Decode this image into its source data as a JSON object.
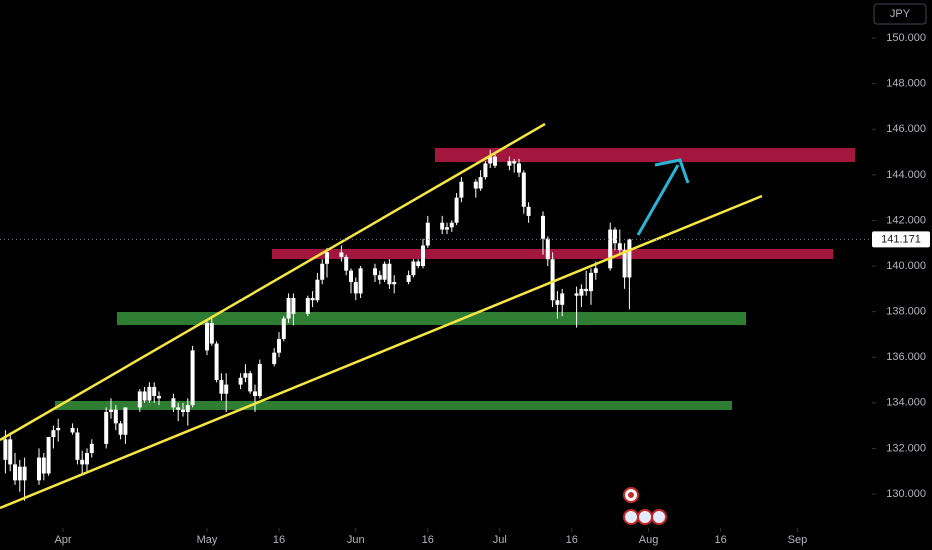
{
  "chart_data": {
    "type": "candlestick",
    "currency": "JPY",
    "x": [
      -12,
      -11,
      -10,
      -9,
      -8,
      -5,
      -4,
      -3,
      -2,
      -1,
      2,
      3,
      4,
      5,
      6,
      9,
      10,
      11,
      12,
      13,
      16,
      17,
      18,
      19,
      20,
      23,
      24,
      25,
      26,
      27,
      30,
      31,
      32,
      33,
      34,
      37,
      38,
      39,
      40,
      41,
      44,
      45,
      46,
      47,
      48,
      51,
      52,
      53,
      54,
      55,
      58,
      59,
      60,
      61,
      62,
      65,
      66,
      67,
      68,
      69,
      72,
      73,
      74,
      75,
      76,
      79,
      80,
      81,
      82,
      83,
      86,
      87,
      88,
      89,
      90,
      93,
      94,
      95,
      96,
      97,
      100,
      101,
      102,
      103,
      104,
      107,
      108,
      109,
      110,
      111,
      114,
      115,
      116,
      117,
      118
    ],
    "ohlc": [
      [
        131.5,
        132.8,
        130.9,
        132.4
      ],
      [
        132.4,
        132.7,
        131.0,
        131.3
      ],
      [
        131.3,
        131.8,
        130.4,
        130.6
      ],
      [
        130.6,
        131.5,
        130.1,
        131.2
      ],
      [
        131.2,
        131.6,
        129.7,
        130.6
      ],
      [
        130.6,
        132.0,
        130.4,
        131.6
      ],
      [
        131.6,
        131.8,
        130.6,
        130.9
      ],
      [
        130.9,
        132.5,
        130.8,
        132.5
      ],
      [
        132.5,
        133.0,
        132.0,
        132.8
      ],
      [
        132.8,
        133.3,
        132.3,
        132.9
      ],
      [
        132.9,
        133.1,
        132.6,
        132.7
      ],
      [
        132.7,
        132.9,
        131.3,
        131.5
      ],
      [
        131.5,
        131.9,
        130.9,
        131.3
      ],
      [
        131.3,
        132.0,
        131.0,
        131.8
      ],
      [
        131.8,
        132.4,
        131.6,
        132.2
      ],
      [
        132.2,
        133.8,
        132.0,
        133.6
      ],
      [
        133.6,
        134.2,
        133.3,
        133.7
      ],
      [
        133.7,
        133.9,
        132.8,
        133.1
      ],
      [
        133.1,
        133.2,
        132.4,
        132.6
      ],
      [
        132.6,
        133.8,
        132.2,
        133.8
      ],
      [
        133.8,
        134.6,
        133.6,
        134.5
      ],
      [
        134.5,
        134.7,
        134.0,
        134.1
      ],
      [
        134.1,
        134.9,
        134.0,
        134.7
      ],
      [
        134.7,
        134.9,
        134.0,
        134.3
      ],
      [
        134.3,
        134.5,
        133.9,
        134.2
      ],
      [
        134.2,
        134.4,
        133.6,
        133.8
      ],
      [
        133.8,
        134.0,
        133.2,
        133.7
      ],
      [
        133.7,
        134.0,
        133.4,
        133.6
      ],
      [
        133.6,
        134.2,
        133.0,
        133.9
      ],
      [
        133.9,
        136.5,
        133.8,
        136.3
      ],
      [
        136.3,
        137.6,
        136.1,
        137.5
      ],
      [
        137.5,
        137.8,
        136.5,
        136.6
      ],
      [
        136.6,
        136.7,
        134.9,
        135.0
      ],
      [
        135.0,
        135.3,
        134.1,
        134.4
      ],
      [
        134.4,
        135.3,
        133.6,
        134.8
      ],
      [
        134.8,
        135.3,
        134.6,
        135.1
      ],
      [
        135.1,
        135.7,
        134.9,
        135.3
      ],
      [
        135.3,
        135.4,
        134.4,
        134.5
      ],
      [
        134.5,
        134.8,
        133.6,
        134.3
      ],
      [
        134.3,
        135.9,
        134.2,
        135.7
      ],
      [
        135.7,
        136.4,
        135.6,
        136.2
      ],
      [
        136.2,
        137.1,
        136.0,
        136.8
      ],
      [
        136.8,
        137.8,
        136.7,
        137.7
      ],
      [
        137.7,
        138.8,
        137.5,
        138.6
      ],
      [
        138.6,
        138.8,
        137.4,
        137.9
      ],
      [
        137.9,
        138.7,
        137.8,
        138.6
      ],
      [
        138.6,
        138.9,
        138.2,
        138.5
      ],
      [
        138.5,
        139.7,
        138.4,
        139.4
      ],
      [
        139.4,
        140.3,
        139.2,
        140.1
      ],
      [
        140.1,
        140.8,
        139.5,
        140.6
      ],
      [
        140.6,
        140.9,
        140.2,
        140.4
      ],
      [
        140.4,
        140.5,
        139.6,
        139.8
      ],
      [
        139.8,
        139.9,
        138.8,
        139.3
      ],
      [
        139.3,
        139.5,
        138.5,
        138.8
      ],
      [
        138.8,
        140.0,
        138.6,
        139.9
      ],
      [
        139.9,
        140.1,
        139.3,
        139.6
      ],
      [
        139.6,
        139.8,
        139.2,
        139.4
      ],
      [
        139.4,
        140.2,
        139.3,
        140.1
      ],
      [
        140.1,
        140.3,
        139.0,
        139.2
      ],
      [
        139.2,
        139.6,
        138.8,
        139.3
      ],
      [
        139.3,
        139.8,
        139.2,
        139.6
      ],
      [
        139.6,
        140.3,
        139.5,
        140.2
      ],
      [
        140.2,
        140.3,
        139.9,
        140.0
      ],
      [
        140.0,
        141.2,
        139.9,
        140.9
      ],
      [
        140.9,
        142.2,
        140.8,
        141.9
      ],
      [
        141.9,
        142.2,
        141.4,
        141.6
      ],
      [
        141.6,
        141.9,
        141.4,
        141.7
      ],
      [
        141.7,
        142.0,
        141.5,
        141.9
      ],
      [
        141.9,
        143.2,
        141.8,
        143.0
      ],
      [
        143.0,
        143.9,
        142.8,
        143.7
      ],
      [
        143.7,
        143.8,
        143.0,
        143.4
      ],
      [
        143.4,
        144.2,
        143.3,
        143.9
      ],
      [
        143.9,
        144.6,
        143.8,
        144.5
      ],
      [
        144.5,
        145.1,
        144.3,
        144.8
      ],
      [
        144.8,
        145.0,
        144.3,
        144.4
      ],
      [
        144.4,
        144.8,
        144.2,
        144.6
      ],
      [
        144.6,
        144.7,
        144.1,
        144.5
      ],
      [
        144.5,
        144.7,
        143.9,
        144.1
      ],
      [
        144.1,
        144.2,
        142.3,
        142.6
      ],
      [
        142.6,
        142.8,
        141.9,
        142.2
      ],
      [
        142.2,
        142.4,
        140.5,
        141.2
      ],
      [
        141.2,
        141.3,
        140.0,
        140.3
      ],
      [
        140.3,
        140.6,
        138.2,
        138.5
      ],
      [
        138.5,
        138.9,
        137.7,
        138.3
      ],
      [
        138.3,
        139.0,
        137.8,
        138.8
      ],
      [
        138.8,
        139.1,
        137.3,
        138.7
      ],
      [
        138.7,
        139.2,
        138.2,
        139.0
      ],
      [
        139.0,
        139.8,
        138.7,
        138.9
      ],
      [
        138.9,
        139.9,
        138.3,
        139.7
      ],
      [
        139.7,
        140.2,
        139.4,
        139.9
      ],
      [
        139.9,
        141.9,
        139.8,
        141.6
      ],
      [
        141.6,
        141.7,
        140.7,
        141.0
      ],
      [
        141.0,
        141.6,
        140.5,
        140.7
      ],
      [
        140.7,
        141.0,
        139.0,
        139.5
      ],
      [
        139.5,
        141.2,
        138.1,
        141.171
      ]
    ],
    "up_color": "#ffffff",
    "down_color": "#ffffff",
    "xlim": [
      -13.125,
      168.125
    ],
    "xticks": [
      {
        "value": 0,
        "label": "Apr"
      },
      {
        "value": 30,
        "label": "May"
      },
      {
        "value": 45,
        "label": "16"
      },
      {
        "value": 61,
        "label": "Jun"
      },
      {
        "value": 76,
        "label": "16"
      },
      {
        "value": 91,
        "label": "Jul"
      },
      {
        "value": 106,
        "label": "16"
      },
      {
        "value": 122,
        "label": "Aug"
      },
      {
        "value": 137,
        "label": "16"
      },
      {
        "value": 153,
        "label": "Sep"
      }
    ],
    "ylim": [
      128.51,
      151.67
    ],
    "yticks": [
      {
        "value": 130,
        "label": "130.000"
      },
      {
        "value": 132,
        "label": "132.000"
      },
      {
        "value": 134,
        "label": "134.000"
      },
      {
        "value": 136,
        "label": "136.000"
      },
      {
        "value": 138,
        "label": "138.000"
      },
      {
        "value": 140,
        "label": "140.000"
      },
      {
        "value": 142,
        "label": "142.000"
      },
      {
        "value": 144,
        "label": "144.000"
      },
      {
        "value": 146,
        "label": "146.000"
      },
      {
        "value": 148,
        "label": "148.000"
      },
      {
        "value": 150,
        "label": "150.000"
      }
    ],
    "last_price": 141.171
  }
}
